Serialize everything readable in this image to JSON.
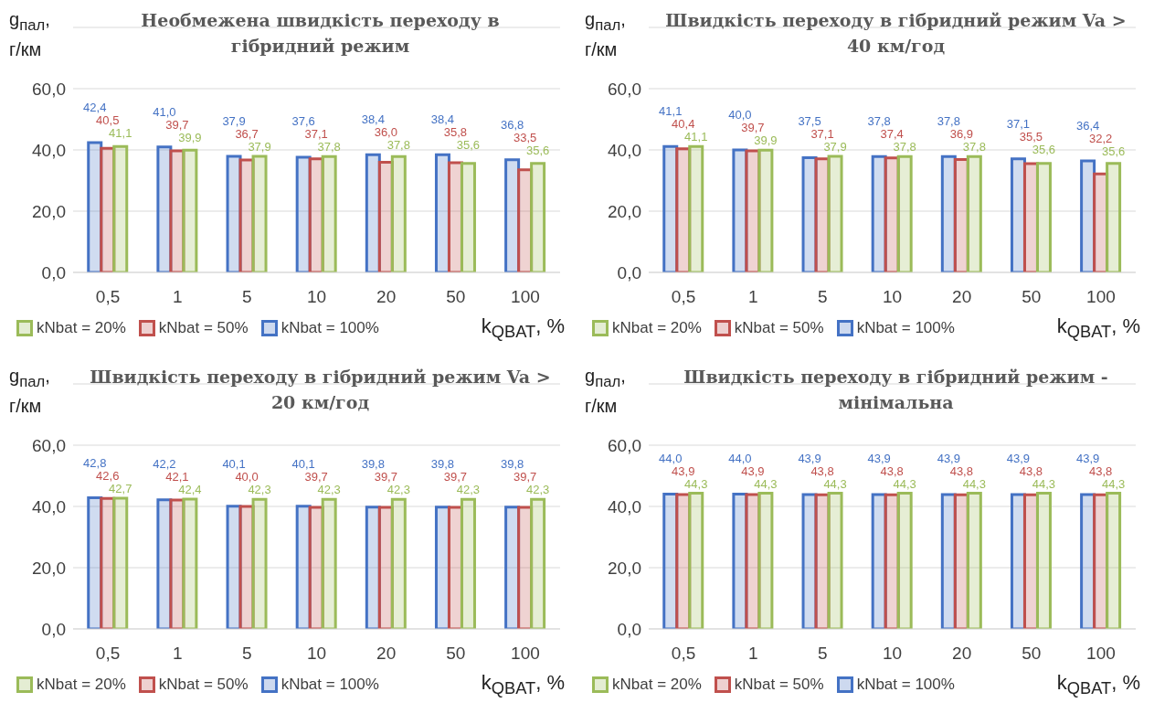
{
  "chart_data": [
    {
      "type": "bar",
      "title": "Необмежена швидкість переходу в гібридний режим",
      "xlabel": "k$_{QBAT}$, %",
      "ylabel": "g$_{пал}$, г/км",
      "categories": [
        "0,5",
        "1",
        "5",
        "10",
        "20",
        "50",
        "100"
      ],
      "ylim": [
        0,
        80
      ],
      "yticks": [
        {
          "value": 0,
          "label": "0,0"
        },
        {
          "value": 20,
          "label": "20,0"
        },
        {
          "value": 40,
          "label": "40,0"
        },
        {
          "value": 60,
          "label": "60,0"
        }
      ],
      "grid": "y",
      "legend": "bottom",
      "series": [
        {
          "name": "kNbat = 100%",
          "color": "#4472c4",
          "values": [
            42.4,
            41.0,
            37.9,
            37.6,
            38.4,
            38.4,
            36.8
          ],
          "value_labels": [
            "42,4",
            "41,0",
            "37,9",
            "37,6",
            "38,4",
            "38,4",
            "36,8"
          ]
        },
        {
          "name": "kNbat = 50%",
          "color": "#c0504d",
          "values": [
            40.5,
            39.7,
            36.7,
            37.1,
            36.0,
            35.8,
            33.5
          ],
          "value_labels": [
            "40,5",
            "39,7",
            "36,7",
            "37,1",
            "36,0",
            "35,8",
            "33,5"
          ]
        },
        {
          "name": "kNbat = 20%",
          "color": "#9bbb59",
          "values": [
            41.1,
            39.9,
            37.9,
            37.8,
            37.8,
            35.6,
            35.6
          ],
          "value_labels": [
            "41,1",
            "39,9",
            "37,9",
            "37,8",
            "37,8",
            "35,6",
            "35,6"
          ]
        }
      ]
    },
    {
      "type": "bar",
      "title": "Швидкість переходу в гібридний режим Va > 40 км/год",
      "xlabel": "k$_{QBAT}$, %",
      "ylabel": "g$_{пал}$, г/км",
      "categories": [
        "0,5",
        "1",
        "5",
        "10",
        "20",
        "50",
        "100"
      ],
      "ylim": [
        0,
        80
      ],
      "yticks": [
        {
          "value": 0,
          "label": "0,0"
        },
        {
          "value": 20,
          "label": "20,0"
        },
        {
          "value": 40,
          "label": "40,0"
        },
        {
          "value": 60,
          "label": "60,0"
        }
      ],
      "grid": "y",
      "legend": "bottom",
      "series": [
        {
          "name": "kNbat = 100%",
          "color": "#4472c4",
          "values": [
            41.1,
            40.0,
            37.5,
            37.8,
            37.8,
            37.1,
            36.4
          ],
          "value_labels": [
            "41,1",
            "40,0",
            "37,5",
            "37,8",
            "37,8",
            "37,1",
            "36,4"
          ]
        },
        {
          "name": "kNbat = 50%",
          "color": "#c0504d",
          "values": [
            40.4,
            39.7,
            37.1,
            37.4,
            36.9,
            35.5,
            32.2
          ],
          "value_labels": [
            "40,4",
            "39,7",
            "37,1",
            "37,4",
            "36,9",
            "35,5",
            "32,2"
          ]
        },
        {
          "name": "kNbat = 20%",
          "color": "#9bbb59",
          "values": [
            41.1,
            39.9,
            37.9,
            37.8,
            37.8,
            35.6,
            35.6
          ],
          "value_labels": [
            "41,1",
            "39,9",
            "37,9",
            "37,8",
            "37,8",
            "35,6",
            "35,6"
          ]
        }
      ]
    },
    {
      "type": "bar",
      "title": "Швидкість переходу в гібридний режим Va > 20 км/год",
      "xlabel": "k$_{QBAT}$, %",
      "ylabel": "g$_{пал}$, г/км",
      "categories": [
        "0,5",
        "1",
        "5",
        "10",
        "20",
        "50",
        "100"
      ],
      "ylim": [
        0,
        80
      ],
      "yticks": [
        {
          "value": 0,
          "label": "0,0"
        },
        {
          "value": 20,
          "label": "20,0"
        },
        {
          "value": 40,
          "label": "40,0"
        },
        {
          "value": 60,
          "label": "60,0"
        }
      ],
      "grid": "y",
      "legend": "bottom",
      "series": [
        {
          "name": "kNbat = 100%",
          "color": "#4472c4",
          "values": [
            42.8,
            42.2,
            40.1,
            40.1,
            39.8,
            39.8,
            39.8
          ],
          "value_labels": [
            "42,8",
            "42,2",
            "40,1",
            "40,1",
            "39,8",
            "39,8",
            "39,8"
          ]
        },
        {
          "name": "kNbat = 50%",
          "color": "#c0504d",
          "values": [
            42.6,
            42.1,
            40.0,
            39.7,
            39.7,
            39.7,
            39.7
          ],
          "value_labels": [
            "42,6",
            "42,1",
            "40,0",
            "39,7",
            "39,7",
            "39,7",
            "39,7"
          ]
        },
        {
          "name": "kNbat = 20%",
          "color": "#9bbb59",
          "values": [
            42.7,
            42.4,
            42.3,
            42.3,
            42.3,
            42.3,
            42.3
          ],
          "value_labels": [
            "42,7",
            "42,4",
            "42,3",
            "42,3",
            "42,3",
            "42,3",
            "42,3"
          ]
        }
      ]
    },
    {
      "type": "bar",
      "title": "Швидкість переходу в гібридний режим - мінімальна",
      "xlabel": "k$_{QBAT}$, %",
      "ylabel": "g$_{пал}$, г/км",
      "categories": [
        "0,5",
        "1",
        "5",
        "10",
        "20",
        "50",
        "100"
      ],
      "ylim": [
        0,
        80
      ],
      "yticks": [
        {
          "value": 0,
          "label": "0,0"
        },
        {
          "value": 20,
          "label": "20,0"
        },
        {
          "value": 40,
          "label": "40,0"
        },
        {
          "value": 60,
          "label": "60,0"
        }
      ],
      "grid": "y",
      "legend": "bottom",
      "series": [
        {
          "name": "kNbat = 100%",
          "color": "#4472c4",
          "values": [
            44.0,
            44.0,
            43.9,
            43.9,
            43.9,
            43.9,
            43.9
          ],
          "value_labels": [
            "44,0",
            "44,0",
            "43,9",
            "43,9",
            "43,9",
            "43,9",
            "43,9"
          ]
        },
        {
          "name": "kNbat = 50%",
          "color": "#c0504d",
          "values": [
            43.9,
            43.9,
            43.8,
            43.8,
            43.8,
            43.8,
            43.8
          ],
          "value_labels": [
            "43,9",
            "43,9",
            "43,8",
            "43,8",
            "43,8",
            "43,8",
            "43,8"
          ]
        },
        {
          "name": "kNbat = 20%",
          "color": "#9bbb59",
          "values": [
            44.3,
            44.3,
            44.3,
            44.3,
            44.3,
            44.3,
            44.3
          ],
          "value_labels": [
            "44,3",
            "44,3",
            "44,3",
            "44,3",
            "44,3",
            "44,3",
            "44,3"
          ]
        }
      ]
    }
  ]
}
